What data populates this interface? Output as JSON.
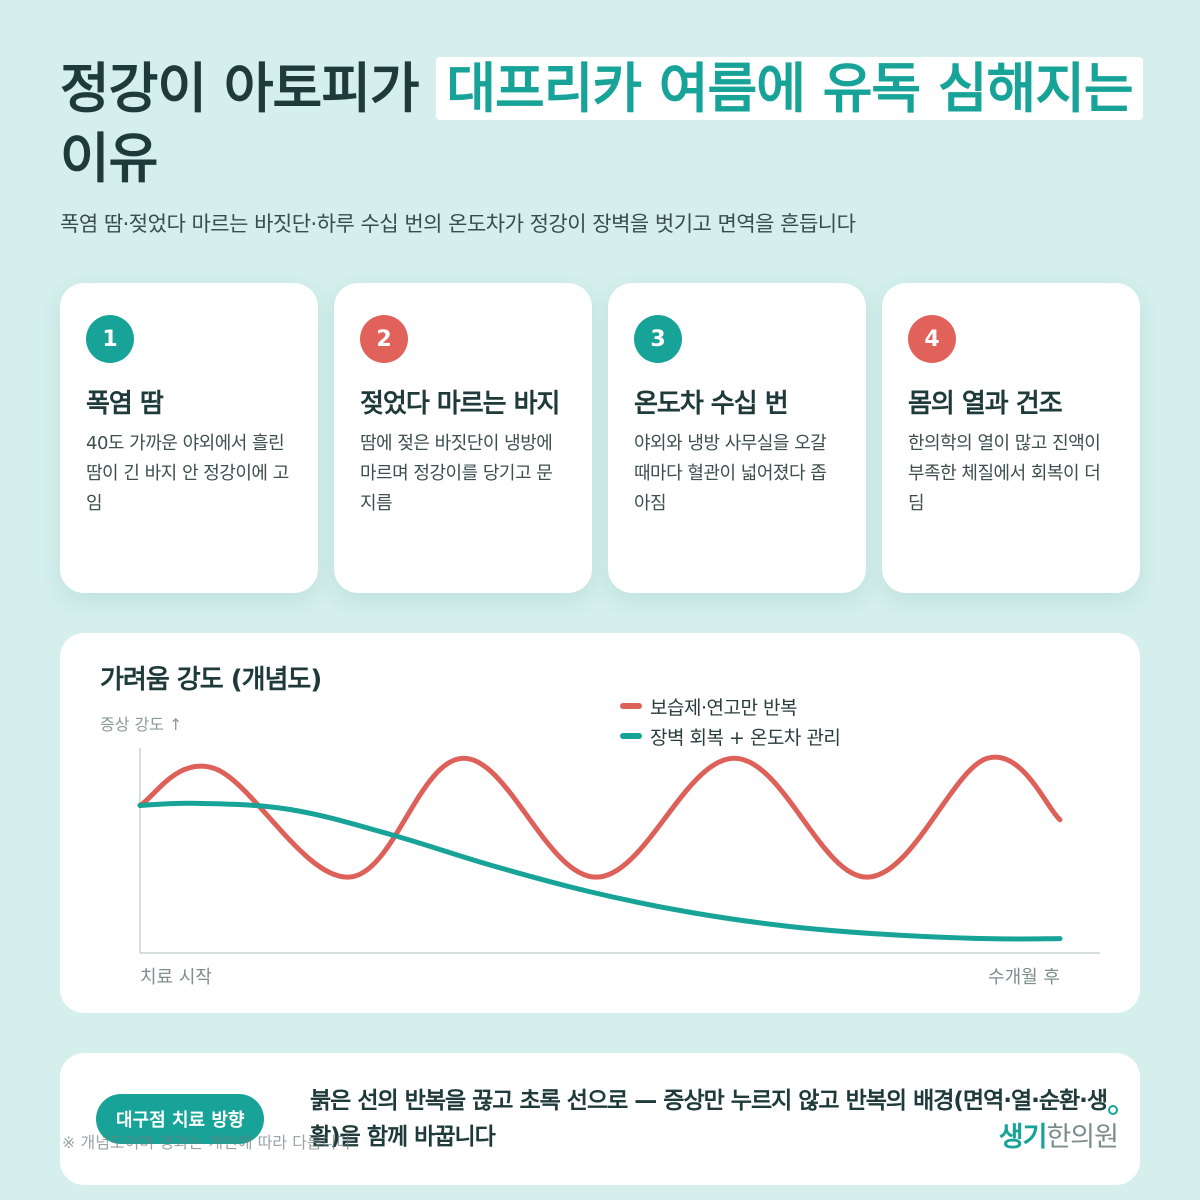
{
  "header": {
    "title_part1": "정강이 아토피가 ",
    "title_highlight": "대프리카 여름에 유독 심해지는",
    "title_part2": " 이유",
    "subtitle": "폭염 땀·젖었다 마르는 바짓단·하루 수십 번의 온도차가 정강이 장벽을 벗기고 면역을 흔듭니다"
  },
  "cards": [
    {
      "number": "1",
      "title": "폭염 땀",
      "desc": "40도 가까운 야외에서 흘린 땀이 긴 바지 안 정강이에 고임",
      "accent": "#17a398"
    },
    {
      "number": "2",
      "title": "젖었다 마르는 바지",
      "desc": "땀에 젖은 바짓단이 냉방에 마르며 정강이를 당기고 문지름",
      "accent": "#e0625b"
    },
    {
      "number": "3",
      "title": "온도차 수십 번",
      "desc": "야외와 냉방 사무실을 오갈 때마다 혈관이 넓어졌다 좁아짐",
      "accent": "#17a398"
    },
    {
      "number": "4",
      "title": "몸의 열과 건조",
      "desc": "한의학의 열이 많고 진액이 부족한 체질에서 회복이 더딤",
      "accent": "#e0625b"
    }
  ],
  "chart_data": {
    "type": "line",
    "title": "가려움 강도 (개념도)",
    "ylabel": "증상 강도 ↑",
    "x_start_label": "치료 시작",
    "x_end_label": "수개월 후",
    "xlim": [
      0,
      1
    ],
    "ylim": [
      0,
      1
    ],
    "grid": false,
    "legend_position": "top-right",
    "series": [
      {
        "name": "보습제·연고만 반복",
        "color": "#dd6159",
        "x": [
          0,
          0.081,
          0.227,
          0.352,
          0.496,
          0.646,
          0.79,
          0.921,
          1.0
        ],
        "y": [
          0.72,
          0.9,
          0.37,
          0.95,
          0.37,
          0.95,
          0.37,
          0.95,
          0.65
        ]
      },
      {
        "name": "장벽 회복 + 온도차 관리",
        "color": "#17a398",
        "x": [
          0,
          0.063,
          0.163,
          0.271,
          0.38,
          0.488,
          0.596,
          0.705,
          0.813,
          0.921,
          1.0
        ],
        "y": [
          0.72,
          0.73,
          0.7,
          0.58,
          0.43,
          0.3,
          0.2,
          0.13,
          0.09,
          0.07,
          0.07
        ]
      }
    ]
  },
  "bottom": {
    "pill": "대구점 치료 방향",
    "message": "붉은 선의 반복을 끊고 초록 선으로 — 증상만 누르지 않고 반복의 배경(면역·열·순환·생활)을 함께 바꿉니다",
    "note": "※ 개념도이며 경과는 개인에 따라 다릅니다",
    "logo_part1": "생기",
    "logo_part2": "한의원"
  }
}
